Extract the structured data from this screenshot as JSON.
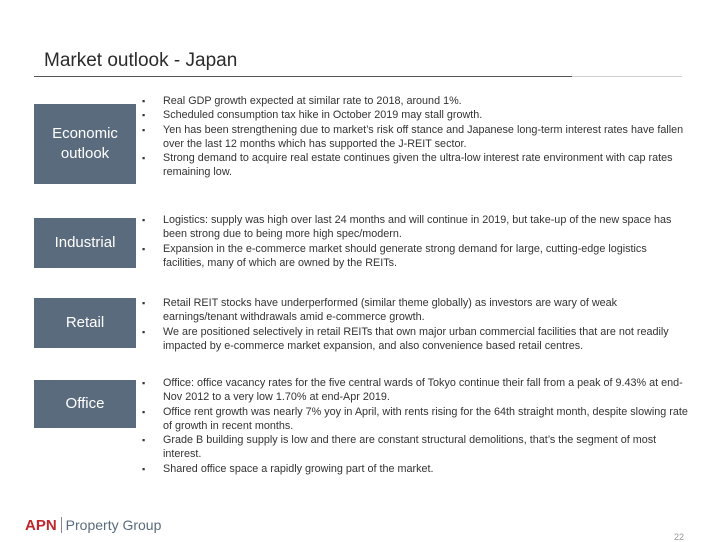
{
  "title": "Market outlook - Japan",
  "sections": [
    {
      "label": "Economic outlook",
      "bullets": [
        "Real GDP growth expected at similar rate to 2018, around 1%.",
        "Scheduled consumption tax hike in October 2019 may stall growth.",
        "Yen has been strengthening due to market’s risk off stance and Japanese long-term interest rates have fallen over the last 12 months which has supported the J-REIT sector.",
        "Strong demand to acquire real estate continues given the ultra-low interest rate environment with cap rates remaining low."
      ]
    },
    {
      "label": "Industrial",
      "bullets": [
        "Logistics: supply was high over last 24 months and will continue in 2019, but take-up of the new space has been strong due to being more high spec/modern.",
        "Expansion in the e-commerce market should generate strong demand for large, cutting-edge logistics facilities, many of which are owned by the REITs."
      ]
    },
    {
      "label": "Retail",
      "bullets": [
        "Retail REIT stocks have underperformed (similar theme globally) as investors are wary of weak earnings/tenant withdrawals amid e-commerce growth.",
        "We are positioned selectively in retail REITs that own major urban commercial facilities that are not readily impacted by e-commerce market expansion, and also convenience based retail centres."
      ]
    },
    {
      "label": "Office",
      "bullets": [
        "Office: office vacancy rates for the five central wards of Tokyo continue their fall from a peak of 9.43% at end-Nov 2012 to a very low 1.70% at end-Apr 2019.",
        "Office rent growth was nearly 7% yoy in April, with rents rising for the 64th straight month, despite slowing rate of growth in recent months.",
        "Grade B building supply is low and there are constant structural demolitions, that’s the segment of most interest.",
        "Shared office space a rapidly growing part of the market."
      ]
    }
  ],
  "footer": {
    "logo_apn": "APN",
    "logo_property_group": "Property Group",
    "page_number": "22"
  },
  "colors": {
    "label_bg": "#5a6b7d",
    "logo_red": "#c0272d"
  }
}
